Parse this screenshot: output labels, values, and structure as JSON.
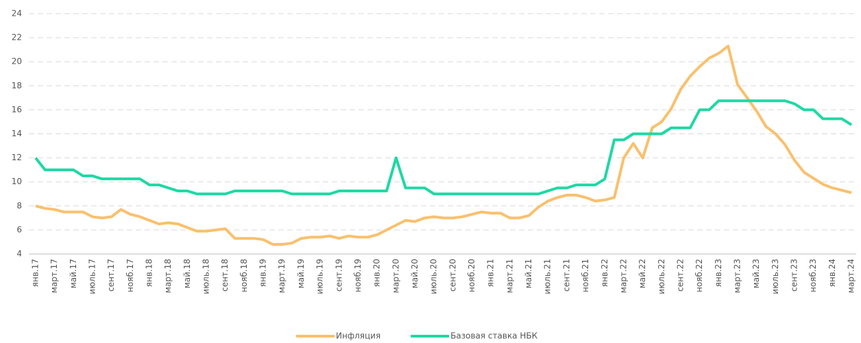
{
  "chart_data": {
    "type": "line",
    "categories": [
      "янв.17",
      null,
      "март.17",
      null,
      "май.17",
      null,
      "июль.17",
      null,
      "сент.17",
      null,
      "нояб.17",
      null,
      "янв.18",
      null,
      "март.18",
      null,
      "май.18",
      null,
      "июль.18",
      null,
      "сент.18",
      null,
      "нояб.18",
      null,
      "янв.19",
      null,
      "март.19",
      null,
      "май.19",
      null,
      "июль.19",
      null,
      "сент.19",
      null,
      "нояб.19",
      null,
      "янв.20",
      null,
      "март.20",
      null,
      "май.20",
      null,
      "июль.20",
      null,
      "сент.20",
      null,
      "нояб.20",
      null,
      "янв.21",
      null,
      "март.21",
      null,
      "май.21",
      null,
      "июль.21",
      null,
      "сент.21",
      null,
      "нояб.21",
      null,
      "янв.22",
      null,
      "март.22",
      null,
      "май.22",
      null,
      "июль.22",
      null,
      "сент.22",
      null,
      "нояб.22",
      null,
      "янв.23",
      null,
      "март.23",
      null,
      "май.23",
      null,
      "июль.23",
      null,
      "сент.23",
      null,
      "нояб.23",
      null,
      "янв.24",
      null,
      "март.24"
    ],
    "series": [
      {
        "name": "Инфляция",
        "color": "#f9c06d",
        "values": [
          8.0,
          7.8,
          7.7,
          7.5,
          7.5,
          7.5,
          7.1,
          7.0,
          7.1,
          7.7,
          7.3,
          7.1,
          6.8,
          6.5,
          6.6,
          6.5,
          6.2,
          5.9,
          5.9,
          6.0,
          6.1,
          5.3,
          5.3,
          5.3,
          5.2,
          4.8,
          4.8,
          4.9,
          5.3,
          5.4,
          5.4,
          5.5,
          5.3,
          5.5,
          5.4,
          5.4,
          5.6,
          6.0,
          6.4,
          6.8,
          6.7,
          7.0,
          7.1,
          7.0,
          7.0,
          7.1,
          7.3,
          7.5,
          7.4,
          7.4,
          7.0,
          7.0,
          7.2,
          7.9,
          8.4,
          8.7,
          8.9,
          8.9,
          8.7,
          8.4,
          8.5,
          8.7,
          12.0,
          13.2,
          12.0,
          14.5,
          15.0,
          16.1,
          17.7,
          18.8,
          19.6,
          20.3,
          20.7,
          21.3,
          18.1,
          17.0,
          15.9,
          14.6,
          14.0,
          13.1,
          11.8,
          10.8,
          10.3,
          9.8,
          9.5,
          9.3,
          9.1
        ]
      },
      {
        "name": "Базовая ставка НБК",
        "color": "#1fd8a4",
        "values": [
          12,
          11,
          11,
          11,
          11,
          10.5,
          10.5,
          10.25,
          10.25,
          10.25,
          10.25,
          10.25,
          9.75,
          9.75,
          9.5,
          9.25,
          9.25,
          9,
          9,
          9,
          9,
          9.25,
          9.25,
          9.25,
          9.25,
          9.25,
          9.25,
          9,
          9,
          9,
          9,
          9,
          9.25,
          9.25,
          9.25,
          9.25,
          9.25,
          9.25,
          12,
          9.5,
          9.5,
          9.5,
          9,
          9,
          9,
          9,
          9,
          9,
          9,
          9,
          9,
          9,
          9,
          9,
          9.25,
          9.5,
          9.5,
          9.75,
          9.75,
          9.75,
          10.25,
          13.5,
          13.5,
          14,
          14,
          14,
          14,
          14.5,
          14.5,
          14.5,
          16,
          16,
          16.75,
          16.75,
          16.75,
          16.75,
          16.75,
          16.75,
          16.75,
          16.75,
          16.5,
          16,
          16,
          15.25,
          15.25,
          15.25,
          14.75
        ]
      }
    ],
    "ylim": [
      4,
      24
    ],
    "yticks": [
      4,
      6,
      8,
      10,
      12,
      14,
      16,
      18,
      20,
      22,
      24
    ],
    "grid": true,
    "legend": "bottom"
  }
}
